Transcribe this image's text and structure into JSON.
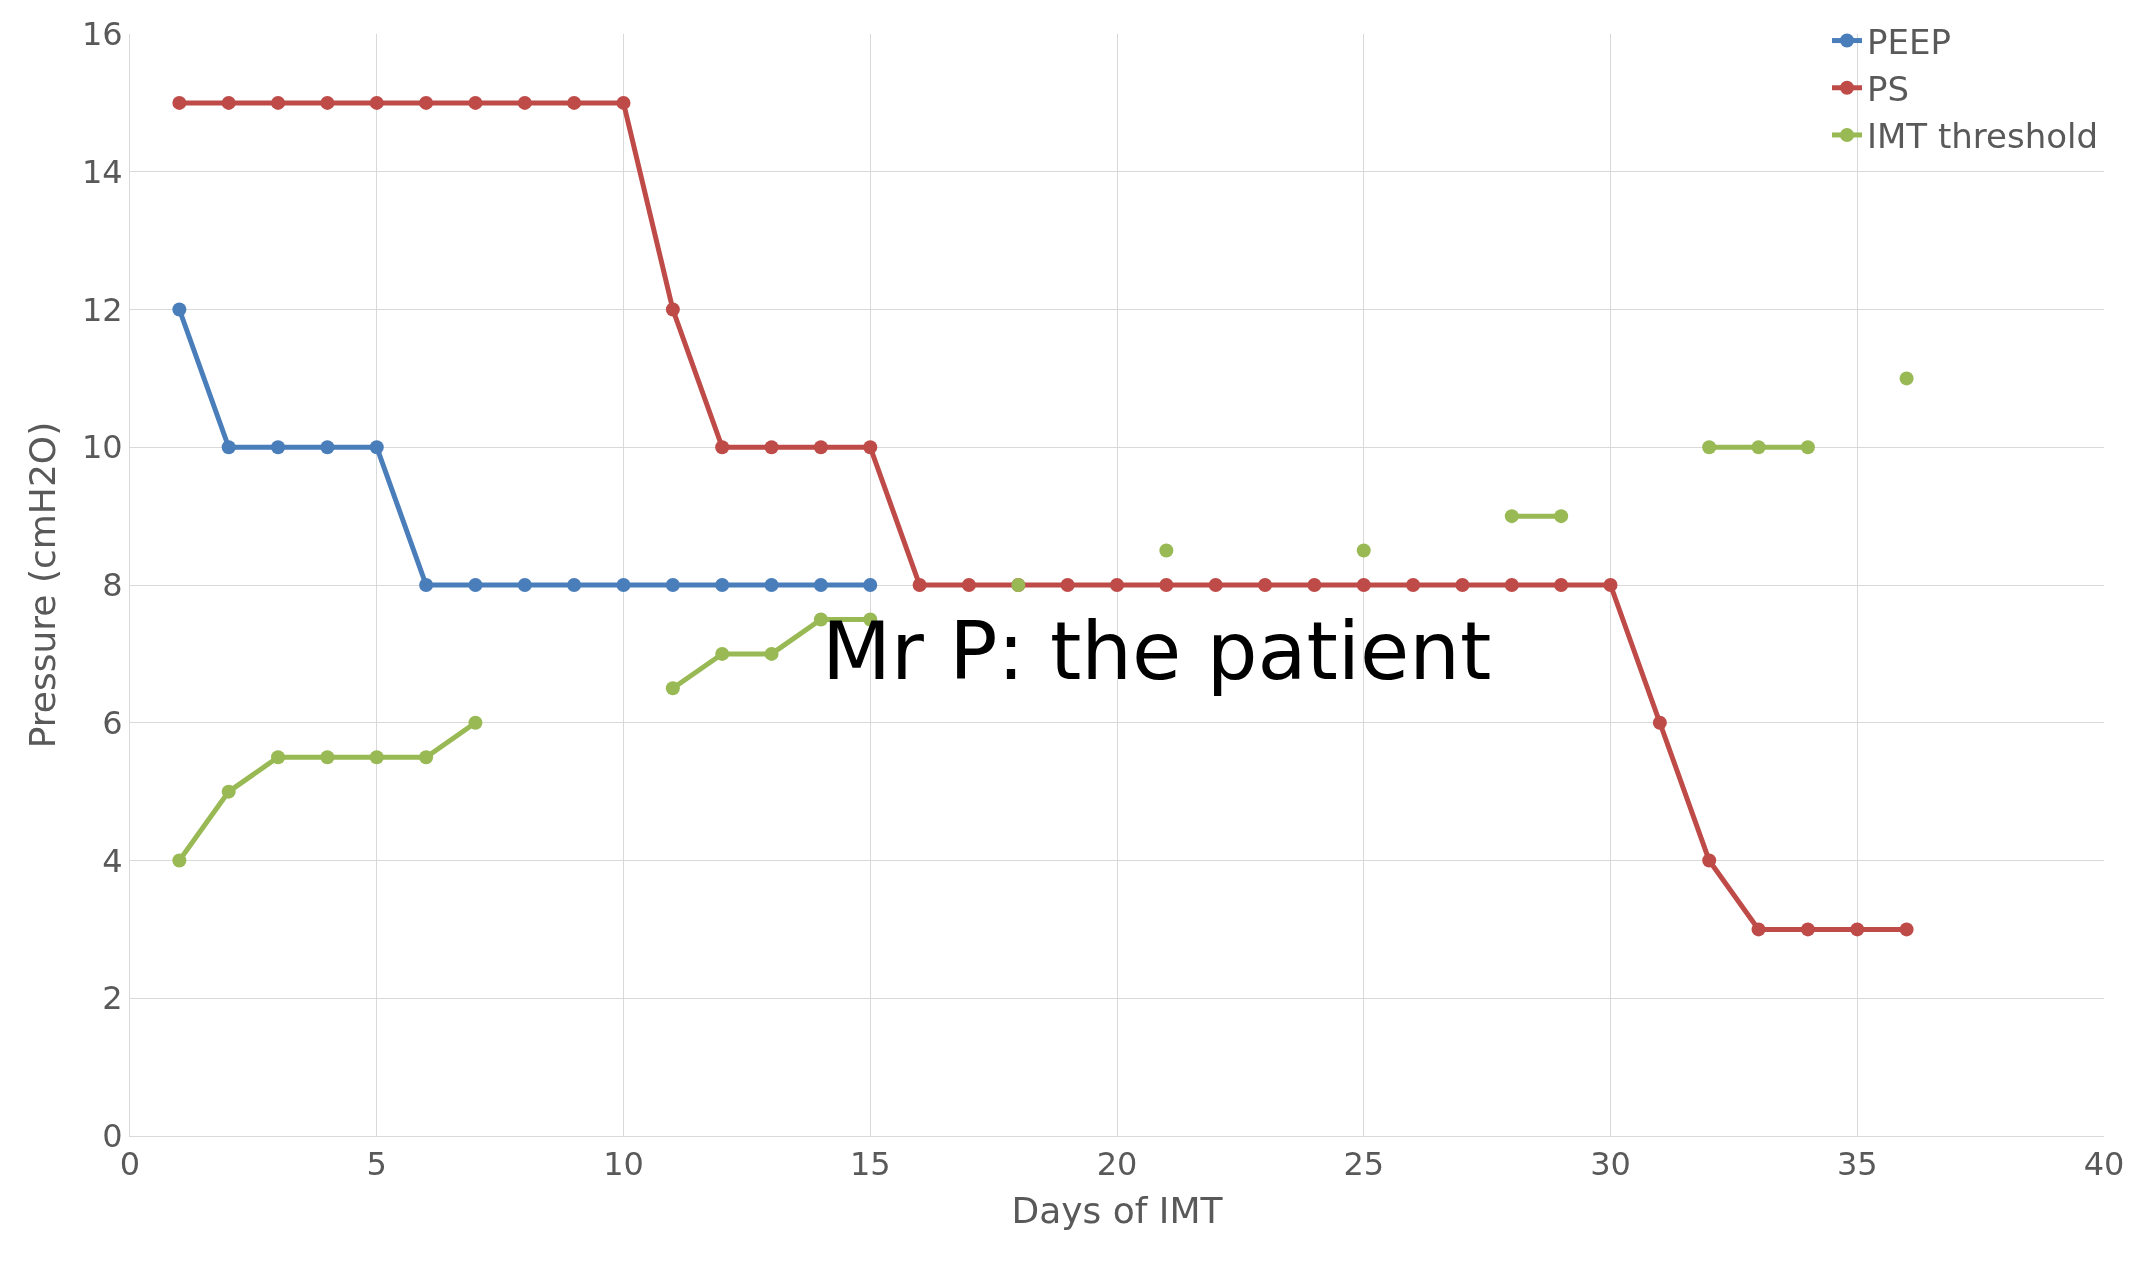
{
  "chart_data": {
    "type": "line",
    "xlabel": "Days of IMT",
    "ylabel": "Pressure (cmH2O)",
    "x": [
      1,
      2,
      3,
      4,
      5,
      6,
      7,
      8,
      9,
      10,
      11,
      12,
      13,
      14,
      15,
      16,
      17,
      18,
      19,
      20,
      21,
      22,
      23,
      24,
      25,
      26,
      27,
      28,
      29,
      30,
      31,
      32,
      33,
      34,
      35,
      36
    ],
    "series": [
      {
        "name": "PEEP",
        "color": "#4a7ebb",
        "values": [
          12,
          10,
          10,
          10,
          10,
          8,
          8,
          8,
          8,
          8,
          8,
          8,
          8,
          8,
          8,
          null,
          null,
          null,
          null,
          null,
          null,
          null,
          null,
          null,
          null,
          null,
          null,
          null,
          null,
          null,
          null,
          null,
          null,
          null,
          null,
          null
        ]
      },
      {
        "name": "PS",
        "color": "#be4b48",
        "values": [
          15,
          15,
          15,
          15,
          15,
          15,
          15,
          15,
          15,
          15,
          12,
          10,
          10,
          10,
          10,
          8,
          8,
          8,
          8,
          8,
          8,
          8,
          8,
          8,
          8,
          8,
          8,
          8,
          8,
          8,
          6,
          4,
          3,
          3,
          3,
          3
        ]
      },
      {
        "name": "IMT threshold",
        "color": "#98b954",
        "values": [
          4,
          5,
          5.5,
          5.5,
          5.5,
          5.5,
          6,
          null,
          null,
          null,
          6.5,
          7,
          7,
          7.5,
          7.5,
          null,
          null,
          8,
          null,
          null,
          8.5,
          null,
          null,
          null,
          8.5,
          null,
          null,
          9,
          9,
          null,
          null,
          10,
          10,
          10,
          null,
          11
        ]
      }
    ],
    "xlim": [
      0,
      40
    ],
    "xticks": [
      0,
      5,
      10,
      15,
      20,
      25,
      30,
      35,
      40
    ],
    "ylim": [
      0,
      16
    ],
    "yticks": [
      0,
      2,
      4,
      6,
      8,
      10,
      12,
      14,
      16
    ],
    "grid": true,
    "legend": "top right",
    "marker": "circle",
    "line_style": "solid",
    "annotations": [
      "Mr P: the patient"
    ]
  }
}
